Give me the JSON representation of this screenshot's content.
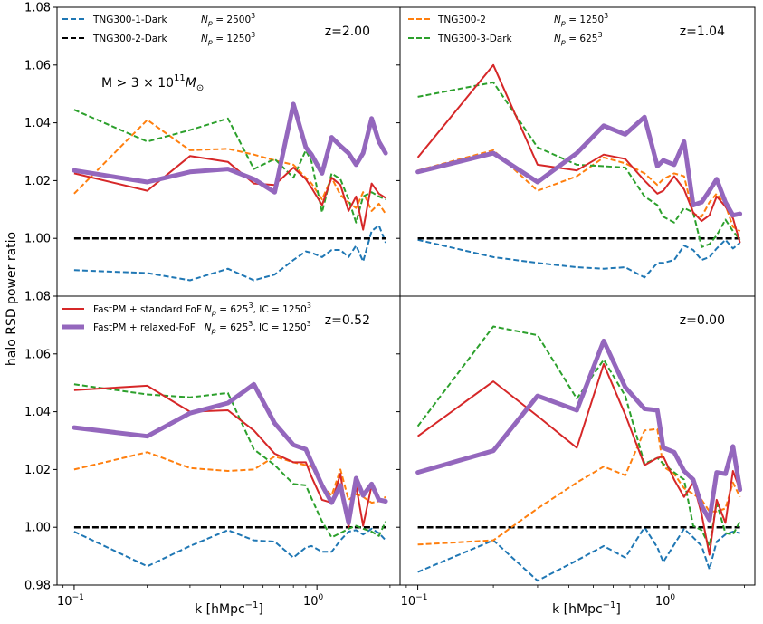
{
  "ylabel": "halo RSD power ratio",
  "xlabel": "k [hMpc",
  "xlabel_exp": "−1",
  "xlabel_close": "]",
  "ylim": [
    0.98,
    1.08
  ],
  "y_ticks": [
    "0.98",
    "1.00",
    "1.02",
    "1.04",
    "1.06",
    "1.08"
  ],
  "x_tick_base": "10",
  "x_ticks": [
    {
      "value": 0.1,
      "exp": "−1"
    },
    {
      "value": 1,
      "exp": "0"
    }
  ],
  "legends": {
    "tng1": {
      "name": "TNG300-1-Dark",
      "np_pre": "N",
      "np_sub": "p",
      "np_eq": " = 2500",
      "np_exp": "3"
    },
    "tng2dark": {
      "name": "TNG300-2-Dark",
      "np_pre": "N",
      "np_sub": "p",
      "np_eq": " = 1250",
      "np_exp": "3"
    },
    "tng2": {
      "name": "TNG300-2",
      "np_pre": "N",
      "np_sub": "p",
      "np_eq": " = 1250",
      "np_exp": "3"
    },
    "tng3dark": {
      "name": "TNG300-3-Dark",
      "np_pre": "N",
      "np_sub": "p",
      "np_eq": " = 625",
      "np_exp": "3"
    },
    "fof": {
      "name": "FastPM + standard FoF",
      "np_pre": "N",
      "np_sub": "p",
      "np_eq": " = 625",
      "np_exp": "3",
      "ic": ", IC = 1250",
      "ic_exp": "3"
    },
    "relaxed": {
      "name": "FastPM + relaxed-FoF",
      "np_pre": "N",
      "np_sub": "p",
      "np_eq": " = 625",
      "np_exp": "3",
      "ic": ", IC = 1250",
      "ic_exp": "3"
    }
  },
  "mass_label": {
    "pre": "M > 3 × 10",
    "exp": "11",
    "m": "M",
    "sub": "⊙"
  },
  "colors": {
    "tng1": "#1f77b4",
    "tng2dark": "#000000",
    "tng2": "#ff7f0e",
    "tng3dark": "#2ca02c",
    "fof": "#d62728",
    "relaxed": "#9467bd"
  },
  "chart_data": [
    {
      "type": "line",
      "panel": "top-left",
      "z_label": "z=2.00",
      "xscale": "log",
      "xlim": [
        0.085,
        2.2
      ],
      "ylim": [
        0.98,
        1.08
      ],
      "x": [
        0.1,
        0.2,
        0.3,
        0.43,
        0.55,
        0.67,
        0.8,
        0.9,
        0.95,
        1.05,
        1.15,
        1.25,
        1.35,
        1.45,
        1.55,
        1.68,
        1.8,
        1.92
      ],
      "series": [
        {
          "name": "TNG300-1-Dark",
          "key": "tng1",
          "values": [
            0.989,
            0.988,
            0.9855,
            0.9895,
            0.9855,
            0.9875,
            0.9925,
            0.9955,
            0.995,
            0.9935,
            0.996,
            0.996,
            0.9935,
            0.9975,
            0.992,
            1.0025,
            1.0045,
            0.9985
          ]
        },
        {
          "name": "TNG300-2-Dark",
          "key": "tng2dark",
          "values": [
            1.0,
            1.0,
            1.0,
            1.0,
            1.0,
            1.0,
            1.0,
            1.0,
            1.0,
            1.0,
            1.0,
            1.0,
            1.0,
            1.0,
            1.0,
            1.0,
            1.0,
            1.0
          ]
        },
        {
          "name": "TNG300-2",
          "key": "tng2",
          "values": [
            1.0155,
            1.041,
            1.0305,
            1.031,
            1.029,
            1.027,
            1.0255,
            1.021,
            1.019,
            1.0135,
            1.021,
            1.015,
            1.0125,
            1.0105,
            1.016,
            1.0095,
            1.012,
            1.0085
          ]
        },
        {
          "name": "TNG300-3-Dark",
          "key": "tng3dark",
          "values": [
            1.0445,
            1.0335,
            1.0375,
            1.0415,
            1.024,
            1.0275,
            1.021,
            1.0305,
            1.0265,
            1.009,
            1.0225,
            1.0205,
            1.0135,
            1.0055,
            1.0145,
            1.016,
            1.0145,
            1.0135
          ]
        },
        {
          "name": "FastPM + standard FoF",
          "key": "fof",
          "values": [
            1.0225,
            1.0165,
            1.0285,
            1.0265,
            1.019,
            1.0185,
            1.0245,
            1.0205,
            1.0175,
            1.0115,
            1.021,
            1.0185,
            1.0095,
            1.0145,
            1.003,
            1.019,
            1.0155,
            1.014
          ]
        },
        {
          "name": "FastPM + relaxed-FoF",
          "key": "relaxed",
          "values": [
            1.0235,
            1.0195,
            1.023,
            1.024,
            1.0205,
            1.016,
            1.0465,
            1.0315,
            1.029,
            1.0225,
            1.035,
            1.032,
            1.0295,
            1.0255,
            1.0295,
            1.0415,
            1.0335,
            1.0295
          ]
        }
      ]
    },
    {
      "type": "line",
      "panel": "top-right",
      "z_label": "z=1.04",
      "xscale": "log",
      "xlim": [
        0.085,
        2.2
      ],
      "ylim": [
        0.98,
        1.08
      ],
      "x": [
        0.1,
        0.2,
        0.3,
        0.43,
        0.55,
        0.67,
        0.8,
        0.9,
        0.95,
        1.05,
        1.15,
        1.25,
        1.35,
        1.45,
        1.55,
        1.68,
        1.8,
        1.92
      ],
      "series": [
        {
          "name": "TNG300-1-Dark",
          "key": "tng1",
          "values": [
            0.9995,
            0.9935,
            0.9915,
            0.99,
            0.9895,
            0.99,
            0.9865,
            0.9915,
            0.9915,
            0.9925,
            0.9975,
            0.996,
            0.9925,
            0.9935,
            0.9965,
            0.9995,
            0.9965,
            0.9985
          ]
        },
        {
          "name": "TNG300-2-Dark",
          "key": "tng2dark",
          "values": [
            1.0,
            1.0,
            1.0,
            1.0,
            1.0,
            1.0,
            1.0,
            1.0,
            1.0,
            1.0,
            1.0,
            1.0,
            1.0,
            1.0,
            1.0,
            1.0,
            1.0,
            1.0
          ]
        },
        {
          "name": "TNG300-2",
          "key": "tng2",
          "values": [
            1.0235,
            1.0305,
            1.0165,
            1.0215,
            1.028,
            1.026,
            1.0225,
            1.0185,
            1.0205,
            1.0225,
            1.0215,
            1.0085,
            1.0075,
            1.0125,
            1.0155,
            1.0115,
            1.004,
            1.0025
          ]
        },
        {
          "name": "TNG300-3-Dark",
          "key": "tng3dark",
          "values": [
            1.049,
            1.054,
            1.0315,
            1.0255,
            1.025,
            1.0245,
            1.0145,
            1.0115,
            1.0075,
            1.0055,
            1.0105,
            1.009,
            0.997,
            0.998,
            1.001,
            1.0065,
            1.0025,
            0.9995
          ]
        },
        {
          "name": "FastPM + standard FoF",
          "key": "fof",
          "values": [
            1.028,
            1.06,
            1.0255,
            1.0235,
            1.029,
            1.0275,
            1.02,
            1.0155,
            1.0165,
            1.0215,
            1.017,
            1.009,
            1.006,
            1.008,
            1.0145,
            1.011,
            1.007,
            0.9985
          ]
        },
        {
          "name": "FastPM + relaxed-FoF",
          "key": "relaxed",
          "values": [
            1.023,
            1.0295,
            1.0195,
            1.0295,
            1.039,
            1.036,
            1.042,
            1.025,
            1.027,
            1.0255,
            1.0335,
            1.0115,
            1.0125,
            1.0165,
            1.0205,
            1.0125,
            1.008,
            1.0085
          ]
        }
      ]
    },
    {
      "type": "line",
      "panel": "bottom-left",
      "z_label": "z=0.52",
      "xscale": "log",
      "xlim": [
        0.085,
        2.2
      ],
      "ylim": [
        0.98,
        1.08
      ],
      "x": [
        0.1,
        0.2,
        0.3,
        0.43,
        0.55,
        0.67,
        0.8,
        0.9,
        0.95,
        1.05,
        1.15,
        1.25,
        1.35,
        1.45,
        1.55,
        1.68,
        1.8,
        1.92
      ],
      "series": [
        {
          "name": "TNG300-1-Dark",
          "key": "tng1",
          "values": [
            0.9985,
            0.9865,
            0.9935,
            0.999,
            0.9955,
            0.995,
            0.9895,
            0.993,
            0.9935,
            0.9915,
            0.9915,
            0.9955,
            0.9985,
            0.999,
            0.9975,
            0.9995,
            0.998,
            0.9955
          ]
        },
        {
          "name": "TNG300-2-Dark",
          "key": "tng2dark",
          "values": [
            1.0,
            1.0,
            1.0,
            1.0,
            1.0,
            1.0,
            1.0,
            1.0,
            1.0,
            1.0,
            1.0,
            1.0,
            1.0,
            1.0,
            1.0,
            1.0,
            1.0,
            1.0
          ]
        },
        {
          "name": "TNG300-2",
          "key": "tng2",
          "values": [
            1.02,
            1.026,
            1.0205,
            1.0195,
            1.02,
            1.0245,
            1.0225,
            1.0215,
            1.021,
            1.0145,
            1.011,
            1.02,
            1.0095,
            1.0115,
            1.0105,
            1.0085,
            1.009,
            1.0105
          ]
        },
        {
          "name": "TNG300-3-Dark",
          "key": "tng3dark",
          "values": [
            1.0495,
            1.046,
            1.045,
            1.0465,
            1.027,
            1.0215,
            1.015,
            1.0145,
            1.01,
            1.002,
            0.9965,
            0.998,
            0.9995,
            1.0005,
            0.9995,
            0.9985,
            0.997,
            1.002
          ]
        },
        {
          "name": "FastPM + standard FoF",
          "key": "fof",
          "values": [
            1.0475,
            1.049,
            1.04,
            1.0405,
            1.0335,
            1.0255,
            1.0225,
            1.0225,
            1.0175,
            1.0095,
            1.0085,
            1.0185,
            1.0,
            1.0145,
            1.0005,
            1.0145,
            1.0095,
            1.0085
          ]
        },
        {
          "name": "FastPM + relaxed-FoF",
          "key": "relaxed",
          "values": [
            1.0345,
            1.0315,
            1.0395,
            1.043,
            1.0495,
            1.036,
            1.0285,
            1.027,
            1.0225,
            1.0145,
            1.0085,
            1.0145,
            1.0015,
            1.017,
            1.011,
            1.015,
            1.0095,
            1.009
          ]
        }
      ]
    },
    {
      "type": "line",
      "panel": "bottom-right",
      "z_label": "z=0.00",
      "xscale": "log",
      "xlim": [
        0.085,
        2.2
      ],
      "ylim": [
        0.98,
        1.08
      ],
      "x": [
        0.1,
        0.2,
        0.3,
        0.43,
        0.55,
        0.67,
        0.8,
        0.9,
        0.95,
        1.05,
        1.15,
        1.25,
        1.35,
        1.45,
        1.55,
        1.68,
        1.8,
        1.92
      ],
      "series": [
        {
          "name": "TNG300-1-Dark",
          "key": "tng1",
          "values": [
            0.9845,
            0.9955,
            0.9815,
            0.9885,
            0.9935,
            0.9895,
            1.0,
            0.993,
            0.988,
            0.994,
            0.9995,
            0.9965,
            0.9935,
            0.9855,
            0.995,
            0.9975,
            0.9985,
            0.998
          ]
        },
        {
          "name": "TNG300-2-Dark",
          "key": "tng2dark",
          "values": [
            1.0,
            1.0,
            1.0,
            1.0,
            1.0,
            1.0,
            1.0,
            1.0,
            1.0,
            1.0,
            1.0,
            1.0,
            1.0,
            1.0,
            1.0,
            1.0,
            1.0,
            1.0
          ]
        },
        {
          "name": "TNG300-2",
          "key": "tng2",
          "values": [
            0.994,
            0.9955,
            1.0065,
            1.0155,
            1.021,
            1.018,
            1.0335,
            1.034,
            1.021,
            1.0185,
            1.0135,
            1.0115,
            1.0095,
            1.0055,
            1.0055,
            1.0065,
            1.0155,
            1.0105
          ]
        },
        {
          "name": "TNG300-3-Dark",
          "key": "tng3dark",
          "values": [
            1.035,
            1.0695,
            1.0665,
            1.0445,
            1.058,
            1.0455,
            1.022,
            1.024,
            1.022,
            1.019,
            1.0165,
            1.0005,
            0.999,
            0.9935,
            1.0085,
            0.998,
            0.9975,
            1.002
          ]
        },
        {
          "name": "FastPM + standard FoF",
          "key": "fof",
          "values": [
            1.0315,
            1.0505,
            1.0385,
            1.0275,
            1.0565,
            1.039,
            1.0215,
            1.024,
            1.0245,
            1.0165,
            1.0105,
            1.0155,
            1.0045,
            0.9905,
            1.0095,
            1.0015,
            1.0195,
            1.013
          ]
        },
        {
          "name": "FastPM + relaxed-FoF",
          "key": "relaxed",
          "values": [
            1.019,
            1.0265,
            1.0455,
            1.0405,
            1.0645,
            1.0485,
            1.041,
            1.0405,
            1.0275,
            1.026,
            1.0195,
            1.0165,
            1.0075,
            1.0025,
            1.019,
            1.0185,
            1.028,
            1.013
          ]
        }
      ]
    }
  ]
}
